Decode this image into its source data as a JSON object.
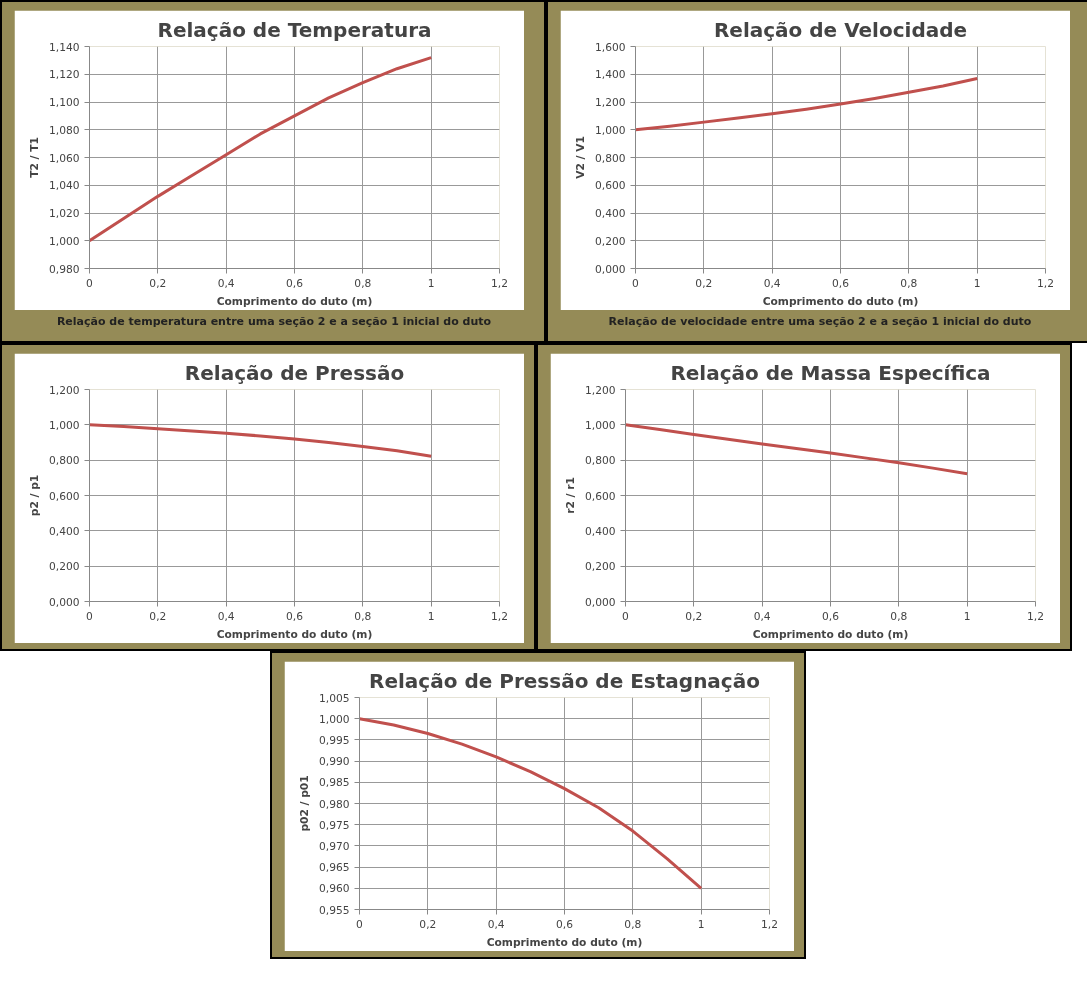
{
  "chart_data": [
    {
      "type": "line",
      "title": "Relação de Temperatura",
      "xlabel": "Comprimento do duto (m)",
      "ylabel": "T2 / T1",
      "annotations": [
        "Relação de temperatura entre uma seção 2 e a seção 1 inicial do duto"
      ],
      "grid": true,
      "x": [
        0,
        0.1,
        0.2,
        0.3,
        0.4,
        0.5,
        0.6,
        0.7,
        0.8,
        0.9,
        1
      ],
      "series": [
        {
          "color": "#c0504d",
          "values": [
            1.0,
            1.016,
            1.032,
            1.047,
            1.062,
            1.077,
            1.09,
            1.103,
            1.114,
            1.124,
            1.132
          ]
        }
      ],
      "xlim": [
        0,
        1.2
      ],
      "xticks": [
        0,
        {
          "value": 0.2,
          "label": "0,2"
        },
        {
          "value": 0.4,
          "label": "0,4"
        },
        {
          "value": 0.6,
          "label": "0,6"
        },
        {
          "value": 0.8,
          "label": "0,8"
        },
        1,
        {
          "value": 1.2,
          "label": "1,2"
        }
      ],
      "ylim": [
        0.98,
        1.14
      ],
      "yticks": [
        {
          "value": 0.98,
          "label": "0,980"
        },
        {
          "value": 1.0,
          "label": "1,000"
        },
        {
          "value": 1.02,
          "label": "1,020"
        },
        {
          "value": 1.04,
          "label": "1,040"
        },
        {
          "value": 1.06,
          "label": "1,060"
        },
        {
          "value": 1.08,
          "label": "1,080"
        },
        {
          "value": 1.1,
          "label": "1,100"
        },
        {
          "value": 1.12,
          "label": "1,120"
        },
        {
          "value": 1.14,
          "label": "1,140"
        }
      ]
    },
    {
      "type": "line",
      "title": "Relação de Velocidade",
      "xlabel": "Comprimento do duto (m)",
      "ylabel": "V2 / V1",
      "annotations": [
        "Relação de velocidade entre uma seção 2 e a seção 1 inicial do duto"
      ],
      "grid": true,
      "x": [
        0,
        0.1,
        0.2,
        0.3,
        0.4,
        0.5,
        0.6,
        0.7,
        0.8,
        0.9,
        1
      ],
      "series": [
        {
          "color": "#c0504d",
          "values": [
            1.0,
            1.025,
            1.055,
            1.085,
            1.115,
            1.148,
            1.185,
            1.225,
            1.27,
            1.315,
            1.37
          ]
        }
      ],
      "xlim": [
        0,
        1.2
      ],
      "xticks": [
        0,
        {
          "value": 0.2,
          "label": "0,2"
        },
        {
          "value": 0.4,
          "label": "0,4"
        },
        {
          "value": 0.6,
          "label": "0,6"
        },
        {
          "value": 0.8,
          "label": "0,8"
        },
        1,
        {
          "value": 1.2,
          "label": "1,2"
        }
      ],
      "ylim": [
        0,
        1.6
      ],
      "yticks": [
        {
          "value": 0,
          "label": "0,000"
        },
        {
          "value": 0.2,
          "label": "0,200"
        },
        {
          "value": 0.4,
          "label": "0,400"
        },
        {
          "value": 0.6,
          "label": "0,600"
        },
        {
          "value": 0.8,
          "label": "0,800"
        },
        {
          "value": 1.0,
          "label": "1,000"
        },
        {
          "value": 1.2,
          "label": "1,200"
        },
        {
          "value": 1.4,
          "label": "1,400"
        },
        {
          "value": 1.6,
          "label": "1,600"
        }
      ]
    },
    {
      "type": "line",
      "title": "Relação de Pressão",
      "xlabel": "Comprimento do duto (m)",
      "ylabel": "p2 / p1",
      "grid": true,
      "x": [
        0,
        0.1,
        0.2,
        0.3,
        0.4,
        0.5,
        0.6,
        0.7,
        0.8,
        0.9,
        1
      ],
      "series": [
        {
          "color": "#c0504d",
          "values": [
            1.0,
            0.99,
            0.978,
            0.965,
            0.952,
            0.937,
            0.92,
            0.9,
            0.878,
            0.853,
            0.822
          ]
        }
      ],
      "xlim": [
        0,
        1.2
      ],
      "xticks": [
        0,
        {
          "value": 0.2,
          "label": "0,2"
        },
        {
          "value": 0.4,
          "label": "0,4"
        },
        {
          "value": 0.6,
          "label": "0,6"
        },
        {
          "value": 0.8,
          "label": "0,8"
        },
        1,
        {
          "value": 1.2,
          "label": "1,2"
        }
      ],
      "ylim": [
        0,
        1.2
      ],
      "yticks": [
        {
          "value": 0,
          "label": "0,000"
        },
        {
          "value": 0.2,
          "label": "0,200"
        },
        {
          "value": 0.4,
          "label": "0,400"
        },
        {
          "value": 0.6,
          "label": "0,600"
        },
        {
          "value": 0.8,
          "label": "0,800"
        },
        {
          "value": 1.0,
          "label": "1,000"
        },
        {
          "value": 1.2,
          "label": "1,200"
        }
      ]
    },
    {
      "type": "line",
      "title": "Relação de Massa Específica",
      "xlabel": "Comprimento do duto (m)",
      "ylabel": "r2 / r1",
      "grid": true,
      "x": [
        0,
        0.1,
        0.2,
        0.3,
        0.4,
        0.5,
        0.6,
        0.7,
        0.8,
        0.9,
        1
      ],
      "series": [
        {
          "color": "#c0504d",
          "values": [
            1.0,
            0.973,
            0.945,
            0.918,
            0.892,
            0.866,
            0.84,
            0.813,
            0.785,
            0.755,
            0.723
          ]
        }
      ],
      "xlim": [
        0,
        1.2
      ],
      "xticks": [
        0,
        {
          "value": 0.2,
          "label": "0,2"
        },
        {
          "value": 0.4,
          "label": "0,4"
        },
        {
          "value": 0.6,
          "label": "0,6"
        },
        {
          "value": 0.8,
          "label": "0,8"
        },
        1,
        {
          "value": 1.2,
          "label": "1,2"
        }
      ],
      "ylim": [
        0,
        1.2
      ],
      "yticks": [
        {
          "value": 0,
          "label": "0,000"
        },
        {
          "value": 0.2,
          "label": "0,200"
        },
        {
          "value": 0.4,
          "label": "0,400"
        },
        {
          "value": 0.6,
          "label": "0,600"
        },
        {
          "value": 0.8,
          "label": "0,800"
        },
        {
          "value": 1.0,
          "label": "1,000"
        },
        {
          "value": 1.2,
          "label": "1,200"
        }
      ]
    },
    {
      "type": "line",
      "title": "Relação de Pressão de Estagnação",
      "xlabel": "Comprimento do duto (m)",
      "ylabel": "p02 / p01",
      "grid": true,
      "x": [
        0,
        0.1,
        0.2,
        0.3,
        0.4,
        0.5,
        0.6,
        0.7,
        0.8,
        0.9,
        1
      ],
      "series": [
        {
          "color": "#c0504d",
          "values": [
            1.0,
            0.9985,
            0.9965,
            0.994,
            0.991,
            0.9875,
            0.9835,
            0.979,
            0.9735,
            0.967,
            0.96
          ]
        }
      ],
      "xlim": [
        0,
        1.2
      ],
      "xticks": [
        0,
        {
          "value": 0.2,
          "label": "0,2"
        },
        {
          "value": 0.4,
          "label": "0,4"
        },
        {
          "value": 0.6,
          "label": "0,6"
        },
        {
          "value": 0.8,
          "label": "0,8"
        },
        1,
        {
          "value": 1.2,
          "label": "1,2"
        }
      ],
      "ylim": [
        0.955,
        1.005
      ],
      "yticks": [
        {
          "value": 0.955,
          "label": "0,955"
        },
        {
          "value": 0.96,
          "label": "0,960"
        },
        {
          "value": 0.965,
          "label": "0,965"
        },
        {
          "value": 0.97,
          "label": "0,970"
        },
        {
          "value": 0.975,
          "label": "0,975"
        },
        {
          "value": 0.98,
          "label": "0,980"
        },
        {
          "value": 0.985,
          "label": "0,985"
        },
        {
          "value": 0.99,
          "label": "0,990"
        },
        {
          "value": 0.995,
          "label": "0,995"
        },
        {
          "value": 1.0,
          "label": "1,000"
        },
        {
          "value": 1.005,
          "label": "1,005"
        }
      ]
    }
  ]
}
